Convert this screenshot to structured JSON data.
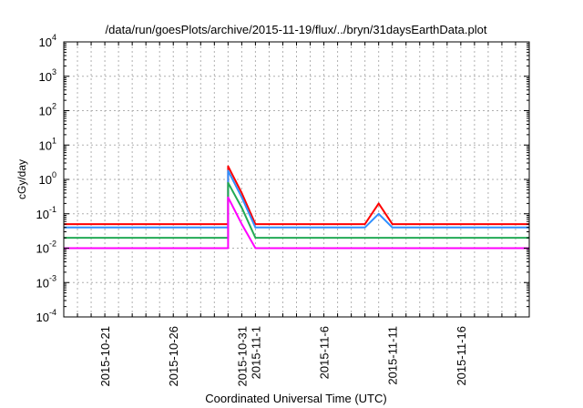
{
  "chart_data": {
    "type": "line",
    "title": "/data/run/goesPlots/archive/2015-11-19/flux/../bryn/31daysEarthData.plot",
    "xlabel": "Coordinated Universal Time (UTC)",
    "ylabel": "cGy/day",
    "yscale": "log",
    "ylim": [
      0.0001,
      10000
    ],
    "xlim": [
      "2015-10-18",
      "2015-11-21"
    ],
    "yticks": [
      {
        "base": "10",
        "exp": "-4"
      },
      {
        "base": "10",
        "exp": "-3"
      },
      {
        "base": "10",
        "exp": "-2"
      },
      {
        "base": "10",
        "exp": "-1"
      },
      {
        "base": "10",
        "exp": "0"
      },
      {
        "base": "10",
        "exp": "1"
      },
      {
        "base": "10",
        "exp": "2"
      },
      {
        "base": "10",
        "exp": "3"
      },
      {
        "base": "10",
        "exp": "4"
      }
    ],
    "xticks": [
      "2015-10-21",
      "2015-10-26",
      "2015-10-31",
      "2015-11-1",
      "2015-11-6",
      "2015-11-11",
      "2015-11-16"
    ],
    "grid": true,
    "legend": "none",
    "colors": {
      "series_red": "#ff0000",
      "series_blue": "#2f8fff",
      "series_green": "#22aa55",
      "series_yellow": "#e0c000",
      "series_navy": "#0000cc",
      "series_magenta": "#ff00ff",
      "grid": "#b0b0b0"
    },
    "series": [
      {
        "color": "#ff0000",
        "points": [
          [
            "2015-10-18",
            0.05
          ],
          [
            "2015-10-30",
            0.05
          ],
          [
            "2015-10-30",
            2.4
          ],
          [
            "2015-10-31",
            0.4
          ],
          [
            "2015-11-1",
            0.05
          ],
          [
            "2015-11-9",
            0.05
          ],
          [
            "2015-11-10",
            0.2
          ],
          [
            "2015-11-11",
            0.05
          ],
          [
            "2015-11-19",
            0.05
          ],
          [
            "2015-11-21",
            0.05
          ]
        ]
      },
      {
        "color": "#2f8fff",
        "points": [
          [
            "2015-10-18",
            0.04
          ],
          [
            "2015-10-30",
            0.04
          ],
          [
            "2015-10-30",
            1.8
          ],
          [
            "2015-10-31",
            0.3
          ],
          [
            "2015-11-1",
            0.04
          ],
          [
            "2015-11-9",
            0.04
          ],
          [
            "2015-11-10",
            0.1
          ],
          [
            "2015-11-11",
            0.04
          ],
          [
            "2015-11-19",
            0.04
          ],
          [
            "2015-11-21",
            0.04
          ]
        ]
      },
      {
        "color": "#22aa55",
        "points": [
          [
            "2015-10-18",
            0.02
          ],
          [
            "2015-10-30",
            0.02
          ],
          [
            "2015-10-30",
            0.8
          ],
          [
            "2015-10-31",
            0.15
          ],
          [
            "2015-11-1",
            0.02
          ],
          [
            "2015-11-19",
            0.02
          ],
          [
            "2015-11-21",
            0.02
          ]
        ]
      },
      {
        "color": "#ff00ff",
        "points": [
          [
            "2015-10-18",
            0.01
          ],
          [
            "2015-10-30",
            0.01
          ],
          [
            "2015-10-30",
            0.3
          ],
          [
            "2015-10-31",
            0.05
          ],
          [
            "2015-11-1",
            0.01
          ],
          [
            "2015-11-19",
            0.01
          ],
          [
            "2015-11-21",
            0.01
          ]
        ]
      }
    ]
  }
}
